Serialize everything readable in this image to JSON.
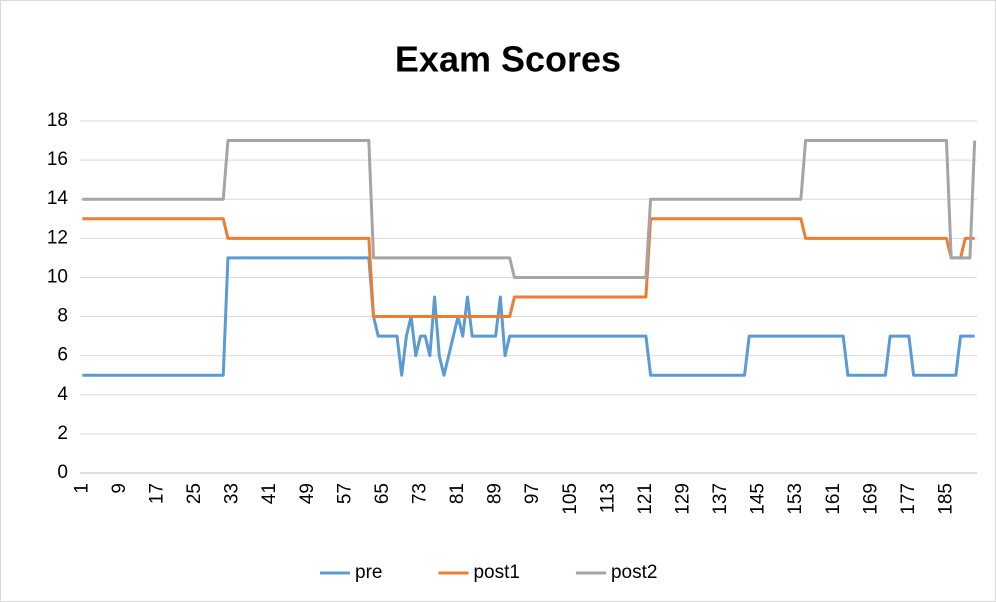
{
  "chart_data": {
    "type": "line",
    "title": "Exam Scores",
    "categories": [
      1,
      null,
      null,
      null,
      null,
      null,
      null,
      null,
      9,
      null,
      null,
      null,
      null,
      null,
      null,
      null,
      17,
      null,
      null,
      null,
      null,
      null,
      null,
      null,
      25,
      null,
      null,
      null,
      null,
      null,
      null,
      null,
      33,
      null,
      null,
      null,
      null,
      null,
      null,
      null,
      41,
      null,
      null,
      null,
      null,
      null,
      null,
      null,
      49,
      null,
      null,
      null,
      null,
      null,
      null,
      null,
      57,
      null,
      null,
      null,
      null,
      null,
      null,
      null,
      65,
      null,
      null,
      null,
      null,
      null,
      null,
      null,
      73,
      null,
      null,
      null,
      null,
      null,
      null,
      null,
      81,
      null,
      null,
      null,
      null,
      null,
      null,
      null,
      89,
      null,
      null,
      null,
      null,
      null,
      null,
      null,
      97,
      null,
      null,
      null,
      null,
      null,
      null,
      null,
      105,
      null,
      null,
      null,
      null,
      null,
      null,
      null,
      113,
      null,
      null,
      null,
      null,
      null,
      null,
      null,
      121,
      null,
      null,
      null,
      null,
      null,
      null,
      null,
      129,
      null,
      null,
      null,
      null,
      null,
      null,
      null,
      137,
      null,
      null,
      null,
      null,
      null,
      null,
      null,
      145,
      null,
      null,
      null,
      null,
      null,
      null,
      null,
      153,
      null,
      null,
      null,
      null,
      null,
      null,
      null,
      161,
      null,
      null,
      null,
      null,
      null,
      null,
      null,
      169,
      null,
      null,
      null,
      null,
      null,
      null,
      null,
      177,
      null,
      null,
      null,
      null,
      null,
      null,
      null,
      185,
      null,
      null,
      null,
      null,
      null,
      null
    ],
    "series": [
      {
        "name": "pre",
        "color": "#5b9bd5",
        "values": [
          5,
          5,
          5,
          5,
          5,
          5,
          5,
          5,
          5,
          5,
          5,
          5,
          5,
          5,
          5,
          5,
          5,
          5,
          5,
          5,
          5,
          5,
          5,
          5,
          5,
          5,
          5,
          5,
          5,
          5,
          5,
          11,
          11,
          11,
          11,
          11,
          11,
          11,
          11,
          11,
          11,
          11,
          11,
          11,
          11,
          11,
          11,
          11,
          11,
          11,
          11,
          11,
          11,
          11,
          11,
          11,
          11,
          11,
          11,
          11,
          11,
          11,
          8,
          7,
          7,
          7,
          7,
          7,
          5,
          7,
          8,
          6,
          7,
          7,
          6,
          9,
          6,
          5,
          6,
          7,
          8,
          7,
          9,
          7,
          7,
          7,
          7,
          7,
          7,
          9,
          6,
          7,
          7,
          7,
          7,
          7,
          7,
          7,
          7,
          7,
          7,
          7,
          7,
          7,
          7,
          7,
          7,
          7,
          7,
          7,
          7,
          7,
          7,
          7,
          7,
          7,
          7,
          7,
          7,
          7,
          7,
          5,
          5,
          5,
          5,
          5,
          5,
          5,
          5,
          5,
          5,
          5,
          5,
          5,
          5,
          5,
          5,
          5,
          5,
          5,
          5,
          5,
          7,
          7,
          7,
          7,
          7,
          7,
          7,
          7,
          7,
          7,
          7,
          7,
          7,
          7,
          7,
          7,
          7,
          7,
          7,
          7,
          7,
          5,
          5,
          5,
          5,
          5,
          5,
          5,
          5,
          5,
          7,
          7,
          7,
          7,
          7,
          5,
          5,
          5,
          5,
          5,
          5,
          5,
          5,
          5,
          5,
          7,
          7,
          7,
          7
        ]
      },
      {
        "name": "post1",
        "color": "#ed7d31",
        "values": [
          13,
          13,
          13,
          13,
          13,
          13,
          13,
          13,
          13,
          13,
          13,
          13,
          13,
          13,
          13,
          13,
          13,
          13,
          13,
          13,
          13,
          13,
          13,
          13,
          13,
          13,
          13,
          13,
          13,
          13,
          13,
          12,
          12,
          12,
          12,
          12,
          12,
          12,
          12,
          12,
          12,
          12,
          12,
          12,
          12,
          12,
          12,
          12,
          12,
          12,
          12,
          12,
          12,
          12,
          12,
          12,
          12,
          12,
          12,
          12,
          12,
          12,
          8,
          8,
          8,
          8,
          8,
          8,
          8,
          8,
          8,
          8,
          8,
          8,
          8,
          8,
          8,
          8,
          8,
          8,
          8,
          8,
          8,
          8,
          8,
          8,
          8,
          8,
          8,
          8,
          8,
          8,
          9,
          9,
          9,
          9,
          9,
          9,
          9,
          9,
          9,
          9,
          9,
          9,
          9,
          9,
          9,
          9,
          9,
          9,
          9,
          9,
          9,
          9,
          9,
          9,
          9,
          9,
          9,
          9,
          9,
          13,
          13,
          13,
          13,
          13,
          13,
          13,
          13,
          13,
          13,
          13,
          13,
          13,
          13,
          13,
          13,
          13,
          13,
          13,
          13,
          13,
          13,
          13,
          13,
          13,
          13,
          13,
          13,
          13,
          13,
          13,
          13,
          13,
          12,
          12,
          12,
          12,
          12,
          12,
          12,
          12,
          12,
          12,
          12,
          12,
          12,
          12,
          12,
          12,
          12,
          12,
          12,
          12,
          12,
          12,
          12,
          12,
          12,
          12,
          12,
          12,
          12,
          12,
          12,
          11,
          11,
          11,
          12,
          12,
          12
        ]
      },
      {
        "name": "post2",
        "color": "#a5a5a5",
        "values": [
          14,
          14,
          14,
          14,
          14,
          14,
          14,
          14,
          14,
          14,
          14,
          14,
          14,
          14,
          14,
          14,
          14,
          14,
          14,
          14,
          14,
          14,
          14,
          14,
          14,
          14,
          14,
          14,
          14,
          14,
          14,
          17,
          17,
          17,
          17,
          17,
          17,
          17,
          17,
          17,
          17,
          17,
          17,
          17,
          17,
          17,
          17,
          17,
          17,
          17,
          17,
          17,
          17,
          17,
          17,
          17,
          17,
          17,
          17,
          17,
          17,
          17,
          11,
          11,
          11,
          11,
          11,
          11,
          11,
          11,
          11,
          11,
          11,
          11,
          11,
          11,
          11,
          11,
          11,
          11,
          11,
          11,
          11,
          11,
          11,
          11,
          11,
          11,
          11,
          11,
          11,
          11,
          10,
          10,
          10,
          10,
          10,
          10,
          10,
          10,
          10,
          10,
          10,
          10,
          10,
          10,
          10,
          10,
          10,
          10,
          10,
          10,
          10,
          10,
          10,
          10,
          10,
          10,
          10,
          10,
          10,
          14,
          14,
          14,
          14,
          14,
          14,
          14,
          14,
          14,
          14,
          14,
          14,
          14,
          14,
          14,
          14,
          14,
          14,
          14,
          14,
          14,
          14,
          14,
          14,
          14,
          14,
          14,
          14,
          14,
          14,
          14,
          14,
          14,
          17,
          17,
          17,
          17,
          17,
          17,
          17,
          17,
          17,
          17,
          17,
          17,
          17,
          17,
          17,
          17,
          17,
          17,
          17,
          17,
          17,
          17,
          17,
          17,
          17,
          17,
          17,
          17,
          17,
          17,
          17,
          11,
          11,
          11,
          11,
          11,
          17
        ]
      }
    ],
    "ylim": [
      0,
      18
    ],
    "yticks": [
      0,
      2,
      4,
      6,
      8,
      10,
      12,
      14,
      16,
      18
    ],
    "grid": true,
    "legend": "bottom"
  }
}
